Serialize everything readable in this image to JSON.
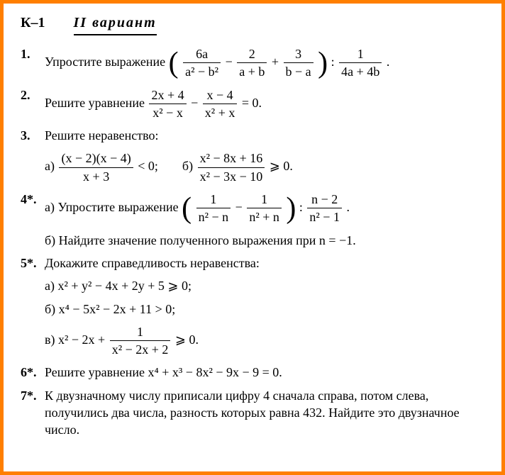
{
  "header": {
    "label": "К–1",
    "variant": "II вариант"
  },
  "p1": {
    "num": "1.",
    "text_a": "Упростите выражение ",
    "f1_top": "6a",
    "f1_bot": "a² − b²",
    "f2_top": "2",
    "f2_bot": "a + b",
    "f3_top": "3",
    "f3_bot": "b − a",
    "f4_top": "1",
    "f4_bot": "4a + 4b",
    "dot": "."
  },
  "p2": {
    "num": "2.",
    "text_a": "Решите уравнение ",
    "f1_top": "2x + 4",
    "f1_bot": "x² − x",
    "f2_top": "x − 4",
    "f2_bot": "x² + x",
    "tail": " = 0."
  },
  "p3": {
    "num": "3.",
    "text_a": "Решите неравенство:",
    "a_label": "а) ",
    "a_top": "(x − 2)(x − 4)",
    "a_bot": "x + 3",
    "a_tail": " < 0;",
    "b_label": "б) ",
    "b_top": "x² − 8x + 16",
    "b_bot": "x² − 3x − 10",
    "b_tail": " ⩾ 0."
  },
  "p4": {
    "num": "4*.",
    "a_label": "а) Упростите выражение ",
    "f1_top": "1",
    "f1_bot": "n² − n",
    "f2_top": "1",
    "f2_bot": "n² + n",
    "f3_top": "n − 2",
    "f3_bot": "n² − 1",
    "dot": ".",
    "b_text": "б) Найдите значение полученного выражения при n = −1."
  },
  "p5": {
    "num": "5*.",
    "text_a": "Докажите справедливость неравенства:",
    "a": "а) x² + y² − 4x + 2y + 5 ⩾ 0;",
    "b": "б) x⁴ − 5x² − 2x + 11 > 0;",
    "c_pre": "в) x² − 2x + ",
    "c_top": "1",
    "c_bot": "x² − 2x + 2",
    "c_tail": " ⩾ 0."
  },
  "p6": {
    "num": "6*.",
    "text": "Решите уравнение x⁴ + x³ − 8x² − 9x − 9 = 0."
  },
  "p7": {
    "num": "7*.",
    "text": "К двузначному числу приписали цифру 4 сначала справа, потом слева, получились два числа, разность которых равна 432. Найдите это двузначное число."
  },
  "colors": {
    "border": "#ff7f00",
    "text": "#000000",
    "background": "#ffffff"
  }
}
